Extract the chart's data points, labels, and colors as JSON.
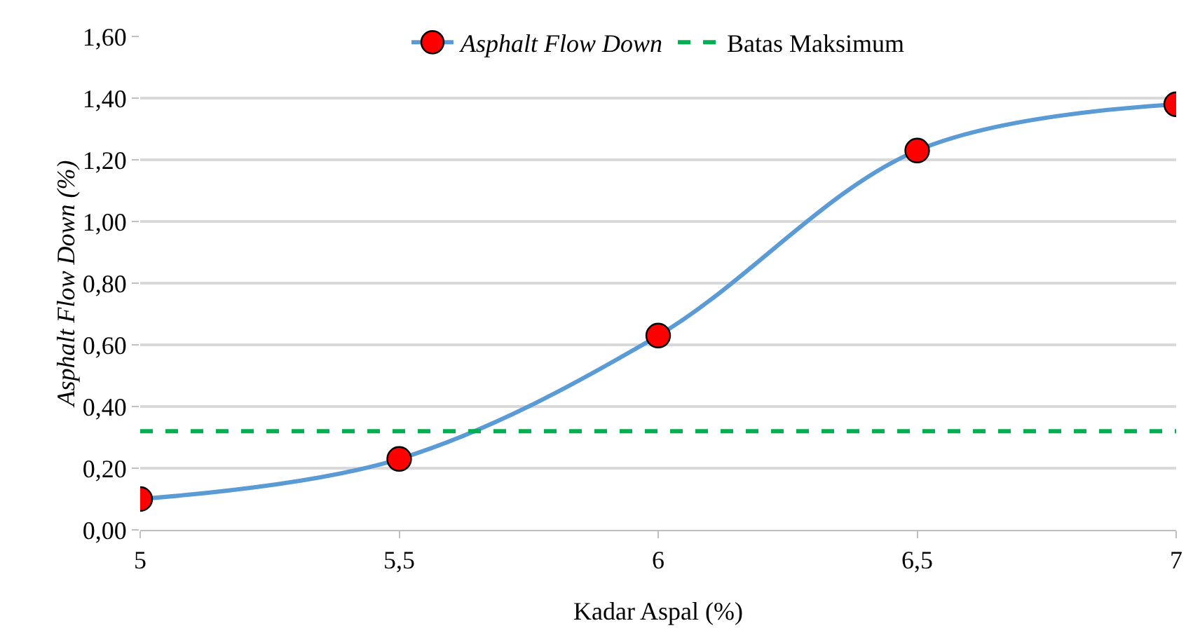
{
  "chart_data": {
    "type": "line",
    "xlabel": "Kadar Aspal (%)",
    "ylabel": "Asphalt Flow Down (%)",
    "x": [
      5,
      5.5,
      6,
      6.5,
      7
    ],
    "series": [
      {
        "name": "Asphalt Flow Down",
        "color": "#5b9bd5",
        "colors": [
          "#ff0000",
          "#ff0000",
          "#ff0000",
          "#ff0000",
          "#ff0000"
        ],
        "values": [
          0.1,
          0.23,
          0.63,
          1.23,
          1.38
        ]
      }
    ],
    "ref_lines": [
      {
        "axis": "y",
        "value": 0.32,
        "label": "Batas Maksimum",
        "color": "#00b050",
        "line_style": "dashed"
      }
    ],
    "xlim": [
      5,
      7
    ],
    "xticks": [
      5,
      {
        "value": 5.5,
        "label": "5,5"
      },
      6,
      {
        "value": 6.5,
        "label": "6,5"
      },
      7
    ],
    "ylim": [
      0,
      1.6
    ],
    "yticks": [
      {
        "value": 0,
        "label": "0,00"
      },
      {
        "value": 0.2,
        "label": "0,20"
      },
      {
        "value": 0.4,
        "label": "0,40"
      },
      {
        "value": 0.6,
        "label": "0,60"
      },
      {
        "value": 0.8,
        "label": "0,80"
      },
      {
        "value": 1.0,
        "label": "1,00"
      },
      {
        "value": 1.2,
        "label": "1,20"
      },
      {
        "value": 1.4,
        "label": "1,40"
      },
      {
        "value": 1.6,
        "label": "1,60"
      }
    ],
    "grid": "y",
    "legend": "top",
    "marker": "circle",
    "line_style": "solid"
  }
}
